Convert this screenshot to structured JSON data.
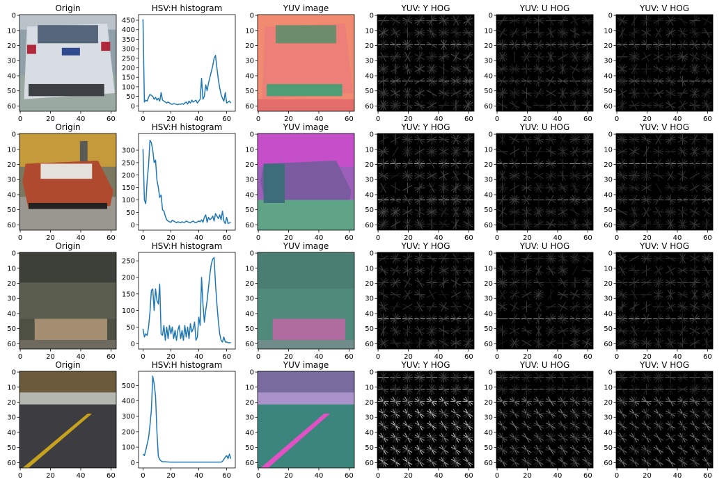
{
  "figure": {
    "rows": 4,
    "cols": 6
  },
  "colors": {
    "line": "#1f77b4",
    "axes": "#000000",
    "hog_bg": "#000000"
  },
  "panels": [
    [
      {
        "kind": "image",
        "title": "Origin",
        "scene": "car_white",
        "xticks": [
          0,
          20,
          40,
          60
        ],
        "yticks": [
          0,
          10,
          20,
          30,
          40,
          50,
          60
        ]
      },
      {
        "kind": "histogram",
        "title": "HSV:H histogram",
        "xticks": [
          0,
          20,
          40,
          60
        ],
        "yticks": [
          0,
          50,
          100,
          150,
          200,
          250,
          300,
          350,
          400,
          450
        ]
      },
      {
        "kind": "image",
        "title": "YUV image",
        "scene": "yuv_salmon",
        "xticks": [
          0,
          20,
          40,
          60
        ],
        "yticks": [
          0,
          10,
          20,
          30,
          40,
          50,
          60
        ]
      },
      {
        "kind": "hog",
        "title": "YUV: Y HOG",
        "intensity": 0.9,
        "pattern": "car",
        "seed": 11,
        "xticks": [
          0,
          20,
          40,
          60
        ],
        "yticks": [
          0,
          10,
          20,
          30,
          40,
          50,
          60
        ]
      },
      {
        "kind": "hog",
        "title": "YUV: U HOG",
        "intensity": 0.7,
        "pattern": "car",
        "seed": 12,
        "xticks": [
          0,
          20,
          40,
          60
        ],
        "yticks": [
          0,
          10,
          20,
          30,
          40,
          50,
          60
        ]
      },
      {
        "kind": "hog",
        "title": "YUV: V HOG",
        "intensity": 0.7,
        "pattern": "car",
        "seed": 13,
        "xticks": [
          0,
          20,
          40,
          60
        ],
        "yticks": [
          0,
          10,
          20,
          30,
          40,
          50,
          60
        ]
      }
    ],
    [
      {
        "kind": "image",
        "title": "Origin",
        "scene": "car_red",
        "xticks": [
          0,
          20,
          40,
          60
        ],
        "yticks": [
          0,
          10,
          20,
          30,
          40,
          50,
          60
        ]
      },
      {
        "kind": "histogram",
        "title": "HSV:H histogram",
        "xticks": [
          0,
          20,
          40,
          60
        ],
        "yticks": [
          0,
          50,
          100,
          150,
          200,
          250,
          300
        ]
      },
      {
        "kind": "image",
        "title": "YUV image",
        "scene": "yuv_purple",
        "xticks": [
          0,
          20,
          40,
          60
        ],
        "yticks": [
          0,
          10,
          20,
          30,
          40,
          50,
          60
        ]
      },
      {
        "kind": "hog",
        "title": "YUV: Y HOG",
        "intensity": 0.85,
        "pattern": "car",
        "seed": 21,
        "xticks": [
          0,
          20,
          40,
          60
        ],
        "yticks": [
          0,
          10,
          20,
          30,
          40,
          50,
          60
        ]
      },
      {
        "kind": "hog",
        "title": "YUV: U HOG",
        "intensity": 0.7,
        "pattern": "car",
        "seed": 22,
        "xticks": [
          0,
          20,
          40,
          60
        ],
        "yticks": [
          0,
          10,
          20,
          30,
          40,
          50,
          60
        ]
      },
      {
        "kind": "hog",
        "title": "YUV: V HOG",
        "intensity": 0.7,
        "pattern": "car",
        "seed": 23,
        "xticks": [
          0,
          20,
          40,
          60
        ],
        "yticks": [
          0,
          10,
          20,
          30,
          40,
          50,
          60
        ]
      }
    ],
    [
      {
        "kind": "image",
        "title": "Origin",
        "scene": "landscape",
        "xticks": [
          0,
          20,
          40,
          60
        ],
        "yticks": [
          0,
          10,
          20,
          30,
          40,
          50,
          60
        ]
      },
      {
        "kind": "histogram",
        "title": "HSV:H histogram",
        "xticks": [
          0,
          20,
          40,
          60
        ],
        "yticks": [
          0,
          50,
          100,
          150,
          200,
          250
        ]
      },
      {
        "kind": "image",
        "title": "YUV image",
        "scene": "yuv_green",
        "xticks": [
          0,
          20,
          40,
          60
        ],
        "yticks": [
          0,
          10,
          20,
          30,
          40,
          50,
          60
        ]
      },
      {
        "kind": "hog",
        "title": "YUV: Y HOG",
        "intensity": 0.75,
        "pattern": "field",
        "seed": 31,
        "xticks": [
          0,
          20,
          40,
          60
        ],
        "yticks": [
          0,
          10,
          20,
          30,
          40,
          50,
          60
        ]
      },
      {
        "kind": "hog",
        "title": "YUV: U HOG",
        "intensity": 0.7,
        "pattern": "field",
        "seed": 32,
        "xticks": [
          0,
          20,
          40,
          60
        ],
        "yticks": [
          0,
          10,
          20,
          30,
          40,
          50,
          60
        ]
      },
      {
        "kind": "hog",
        "title": "YUV: V HOG",
        "intensity": 0.7,
        "pattern": "field",
        "seed": 33,
        "xticks": [
          0,
          20,
          40,
          60
        ],
        "yticks": [
          0,
          10,
          20,
          30,
          40,
          50,
          60
        ]
      }
    ],
    [
      {
        "kind": "image",
        "title": "Origin",
        "scene": "road",
        "xticks": [
          0,
          20,
          40,
          60
        ],
        "yticks": [
          0,
          10,
          20,
          30,
          40,
          50,
          60
        ]
      },
      {
        "kind": "histogram",
        "title": "HSV:H histogram",
        "xticks": [
          0,
          20,
          40,
          60
        ],
        "yticks": [
          0,
          100,
          200,
          300,
          400,
          500
        ]
      },
      {
        "kind": "image",
        "title": "YUV image",
        "scene": "yuv_road",
        "xticks": [
          0,
          20,
          40,
          60
        ],
        "yticks": [
          0,
          10,
          20,
          30,
          40,
          50,
          60
        ]
      },
      {
        "kind": "hog",
        "title": "YUV: Y HOG",
        "intensity": 0.85,
        "pattern": "diagonal",
        "seed": 41,
        "xticks": [
          0,
          20,
          40,
          60
        ],
        "yticks": [
          0,
          10,
          20,
          30,
          40,
          50,
          60
        ]
      },
      {
        "kind": "hog",
        "title": "YUV: U HOG",
        "intensity": 0.55,
        "pattern": "diagonal",
        "seed": 42,
        "xticks": [
          0,
          20,
          40,
          60
        ],
        "yticks": [
          0,
          10,
          20,
          30,
          40,
          50,
          60
        ]
      },
      {
        "kind": "hog",
        "title": "YUV: V HOG",
        "intensity": 0.55,
        "pattern": "diagonal",
        "seed": 43,
        "xticks": [
          0,
          20,
          40,
          60
        ],
        "yticks": [
          0,
          10,
          20,
          30,
          40,
          50,
          60
        ]
      }
    ]
  ],
  "chart_data": [
    {
      "type": "line",
      "title": "HSV:H histogram",
      "xlim": [
        0,
        64
      ],
      "ylim": [
        0,
        470
      ],
      "series": [
        {
          "x": [
            0,
            1,
            2,
            3,
            4,
            5,
            6,
            7,
            8,
            9,
            10,
            11,
            12,
            13,
            14,
            15,
            16,
            17,
            18,
            19,
            20,
            21,
            22,
            23,
            24,
            25,
            26,
            27,
            28,
            29,
            30,
            31,
            32,
            33,
            34,
            35,
            36,
            37,
            38,
            39,
            40,
            41,
            42,
            43,
            44,
            45,
            46,
            47,
            48,
            49,
            50,
            51,
            52,
            53,
            54,
            55,
            56,
            57,
            58,
            59,
            60,
            61,
            62,
            63
          ],
          "y": [
            455,
            20,
            30,
            25,
            45,
            60,
            55,
            50,
            35,
            45,
            30,
            40,
            25,
            70,
            30,
            25,
            20,
            15,
            20,
            15,
            10,
            8,
            12,
            10,
            8,
            6,
            10,
            8,
            12,
            8,
            15,
            20,
            10,
            25,
            15,
            30,
            20,
            25,
            30,
            15,
            25,
            35,
            145,
            35,
            50,
            110,
            80,
            120,
            150,
            180,
            210,
            250,
            265,
            200,
            140,
            95,
            60,
            40,
            25,
            70,
            15,
            20,
            25,
            15
          ]
        }
      ]
    },
    {
      "type": "line",
      "title": "HSV:H histogram",
      "xlim": [
        0,
        64
      ],
      "ylim": [
        0,
        360
      ],
      "series": [
        {
          "x": [
            0,
            1,
            2,
            3,
            4,
            5,
            6,
            7,
            8,
            9,
            10,
            11,
            12,
            13,
            14,
            15,
            16,
            17,
            18,
            19,
            20,
            21,
            22,
            23,
            24,
            25,
            26,
            27,
            28,
            29,
            30,
            31,
            32,
            33,
            34,
            35,
            36,
            37,
            38,
            39,
            40,
            41,
            42,
            43,
            44,
            45,
            46,
            47,
            48,
            49,
            50,
            51,
            52,
            53,
            54,
            55,
            56,
            57,
            58,
            59,
            60,
            61,
            62,
            63
          ],
          "y": [
            305,
            100,
            85,
            180,
            240,
            340,
            330,
            300,
            250,
            260,
            180,
            150,
            110,
            120,
            60,
            55,
            35,
            20,
            15,
            12,
            10,
            18,
            15,
            12,
            8,
            12,
            10,
            8,
            12,
            10,
            10,
            15,
            12,
            10,
            8,
            12,
            15,
            10,
            8,
            12,
            15,
            12,
            20,
            10,
            30,
            40,
            10,
            30,
            20,
            25,
            35,
            15,
            45,
            35,
            25,
            40,
            20,
            55,
            15,
            5,
            30,
            5,
            8,
            8
          ]
        }
      ]
    },
    {
      "type": "line",
      "title": "HSV:H histogram",
      "xlim": [
        0,
        64
      ],
      "ylim": [
        0,
        270
      ],
      "series": [
        {
          "x": [
            0,
            1,
            2,
            3,
            4,
            5,
            6,
            7,
            8,
            9,
            10,
            11,
            12,
            13,
            14,
            15,
            16,
            17,
            18,
            19,
            20,
            21,
            22,
            23,
            24,
            25,
            26,
            27,
            28,
            29,
            30,
            31,
            32,
            33,
            34,
            35,
            36,
            37,
            38,
            39,
            40,
            41,
            42,
            43,
            44,
            45,
            46,
            47,
            48,
            49,
            50,
            51,
            52,
            53,
            54,
            55,
            56,
            57,
            58,
            59,
            60,
            61,
            62,
            63
          ],
          "y": [
            45,
            20,
            30,
            25,
            50,
            95,
            160,
            165,
            100,
            165,
            130,
            120,
            180,
            30,
            25,
            55,
            10,
            50,
            15,
            55,
            30,
            50,
            15,
            40,
            10,
            40,
            55,
            15,
            40,
            10,
            55,
            20,
            50,
            15,
            60,
            35,
            45,
            65,
            10,
            20,
            80,
            55,
            200,
            120,
            65,
            100,
            130,
            170,
            210,
            240,
            255,
            260,
            180,
            120,
            70,
            30,
            10,
            5,
            20,
            5,
            5,
            3,
            3,
            3
          ]
        }
      ]
    },
    {
      "type": "line",
      "title": "HSV:H histogram",
      "xlim": [
        0,
        64
      ],
      "ylim": [
        0,
        580
      ],
      "series": [
        {
          "x": [
            0,
            1,
            2,
            3,
            4,
            5,
            6,
            7,
            8,
            9,
            10,
            11,
            12,
            13,
            14,
            15,
            16,
            17,
            18,
            19,
            20,
            21,
            22,
            23,
            24,
            25,
            26,
            27,
            28,
            29,
            30,
            31,
            32,
            33,
            34,
            35,
            36,
            37,
            38,
            39,
            40,
            41,
            42,
            43,
            44,
            45,
            46,
            47,
            48,
            49,
            50,
            51,
            52,
            53,
            54,
            55,
            56,
            57,
            58,
            59,
            60,
            61,
            62,
            63
          ],
          "y": [
            55,
            45,
            80,
            120,
            160,
            240,
            340,
            560,
            510,
            430,
            200,
            40,
            20,
            10,
            5,
            5,
            5,
            4,
            4,
            3,
            3,
            3,
            3,
            3,
            3,
            3,
            3,
            3,
            3,
            3,
            3,
            3,
            3,
            3,
            3,
            3,
            3,
            3,
            3,
            3,
            3,
            3,
            3,
            3,
            3,
            3,
            3,
            3,
            3,
            3,
            3,
            3,
            3,
            3,
            3,
            3,
            3,
            8,
            20,
            35,
            45,
            25,
            55,
            25
          ]
        }
      ]
    }
  ]
}
